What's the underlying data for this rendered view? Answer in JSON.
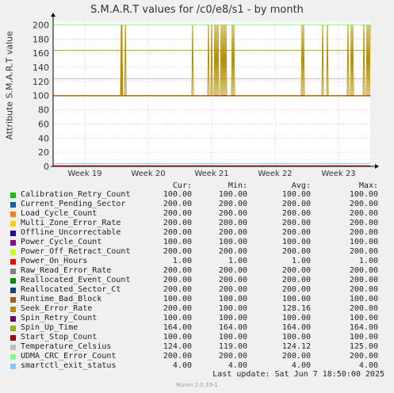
{
  "title": "S.M.A.R.T values for /c0/e8/s1 - by month",
  "side_text": "RRDTOOL / TOBI OETIKER",
  "footer": "Munin 2.0.33-1",
  "last_update": "Last update:  Sat Jun  7 18:50:00 2025",
  "legend_headers": {
    "cur": "Cur:",
    "min": "Min:",
    "avg": "Avg:",
    "max": "Max:"
  },
  "chart_data": {
    "type": "line",
    "ylabel": "Attribute S.M.A.R.T value",
    "ylim": [
      0,
      205
    ],
    "yticks": [
      "0",
      "20",
      "40",
      "60",
      "80",
      "100",
      "120",
      "140",
      "160",
      "180",
      "200"
    ],
    "xticks": [
      "Week 19",
      "Week 20",
      "Week 21",
      "Week 22",
      "Week 23"
    ],
    "grid": true,
    "series": [
      {
        "name": "Calibration_Retry_Count",
        "color": "#00cc00",
        "cur": "100.00",
        "min": "100.00",
        "avg": "100.00",
        "max": "100.00"
      },
      {
        "name": "Current_Pending_Sector",
        "color": "#0066b3",
        "cur": "200.00",
        "min": "200.00",
        "avg": "200.00",
        "max": "200.00"
      },
      {
        "name": "Load_Cycle_Count",
        "color": "#ff8000",
        "cur": "200.00",
        "min": "200.00",
        "avg": "200.00",
        "max": "200.00"
      },
      {
        "name": "Multi_Zone_Error_Rate",
        "color": "#ffcc00",
        "cur": "200.00",
        "min": "200.00",
        "avg": "200.00",
        "max": "200.00"
      },
      {
        "name": "Offline_Uncorrectable",
        "color": "#330099",
        "cur": "200.00",
        "min": "200.00",
        "avg": "200.00",
        "max": "200.00"
      },
      {
        "name": "Power_Cycle_Count",
        "color": "#990099",
        "cur": "100.00",
        "min": "100.00",
        "avg": "100.00",
        "max": "100.00"
      },
      {
        "name": "Power_Off_Retract_Count",
        "color": "#ccff00",
        "cur": "200.00",
        "min": "200.00",
        "avg": "200.00",
        "max": "200.00"
      },
      {
        "name": "Power_On_Hours",
        "color": "#ff0000",
        "cur": "1.00",
        "min": "1.00",
        "avg": "1.00",
        "max": "1.00"
      },
      {
        "name": "Raw_Read_Error_Rate",
        "color": "#808080",
        "cur": "200.00",
        "min": "200.00",
        "avg": "200.00",
        "max": "200.00"
      },
      {
        "name": "Reallocated_Event_Count",
        "color": "#008f00",
        "cur": "200.00",
        "min": "200.00",
        "avg": "200.00",
        "max": "200.00"
      },
      {
        "name": "Reallocated_Sector_Ct",
        "color": "#00487d",
        "cur": "200.00",
        "min": "200.00",
        "avg": "200.00",
        "max": "200.00"
      },
      {
        "name": "Runtime_Bad_Block",
        "color": "#b35a00",
        "cur": "100.00",
        "min": "100.00",
        "avg": "100.00",
        "max": "100.00"
      },
      {
        "name": "Seek_Error_Rate",
        "color": "#b38f00",
        "cur": "200.00",
        "min": "100.00",
        "avg": "128.16",
        "max": "200.00"
      },
      {
        "name": "Spin_Retry_Count",
        "color": "#6b006b",
        "cur": "100.00",
        "min": "100.00",
        "avg": "100.00",
        "max": "100.00"
      },
      {
        "name": "Spin_Up_Time",
        "color": "#8fb300",
        "cur": "164.00",
        "min": "164.00",
        "avg": "164.00",
        "max": "164.00"
      },
      {
        "name": "Start_Stop_Count",
        "color": "#b30000",
        "cur": "100.00",
        "min": "100.00",
        "avg": "100.00",
        "max": "100.00"
      },
      {
        "name": "Temperature_Celsius",
        "color": "#bebebe",
        "cur": "124.00",
        "min": "119.00",
        "avg": "124.12",
        "max": "125.00"
      },
      {
        "name": "UDMA_CRC_Error_Count",
        "color": "#80ff80",
        "cur": "200.00",
        "min": "200.00",
        "avg": "200.00",
        "max": "200.00"
      },
      {
        "name": "smartctl_exit_status",
        "color": "#80c9ff",
        "cur": "4.00",
        "min": "4.00",
        "avg": "4.00",
        "max": "4.00"
      }
    ],
    "seek_error_rate_spikes_x": [
      0.215,
      0.217,
      0.228,
      0.44,
      0.49,
      0.5,
      0.51,
      0.515,
      0.52,
      0.53,
      0.535,
      0.54,
      0.545,
      0.565,
      0.57,
      0.785,
      0.79,
      0.85,
      0.865,
      0.93,
      0.94,
      0.945,
      0.98,
      0.99,
      0.995
    ]
  }
}
